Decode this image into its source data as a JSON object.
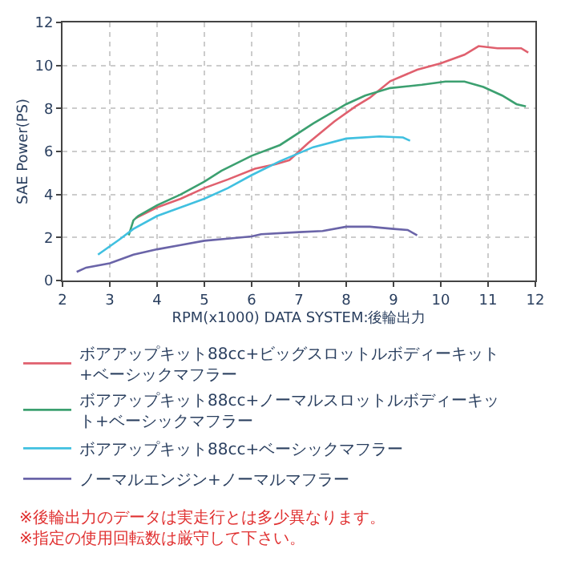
{
  "chart_data": {
    "type": "line",
    "xlabel": "RPM(x1000) DATA SYSTEM:後輪出力",
    "ylabel": "SAE Power(PS)",
    "xlim": [
      2,
      12
    ],
    "xticks": [
      2,
      3,
      4,
      5,
      6,
      7,
      8,
      9,
      10,
      11,
      12
    ],
    "ylim": [
      0,
      12
    ],
    "yticks": [
      0,
      2,
      4,
      6,
      8,
      10,
      12
    ],
    "grid": true,
    "legend": "bottom",
    "line_style": "solid",
    "marker": "none",
    "series": [
      {
        "name": "ボアアップキット88cc+ビッグスロットルボディーキット+ベーシックマフラー",
        "color": "#e0606e",
        "x": [
          3.55,
          4,
          4.5,
          5,
          5.5,
          6.07,
          6.5,
          6.8,
          7.2,
          7.75,
          8.2,
          8.5,
          8.93,
          9.5,
          10,
          10.5,
          10.8,
          11.2,
          11.5,
          11.7,
          11.85
        ],
        "values": [
          2.9,
          3.4,
          3.8,
          4.3,
          4.7,
          5.2,
          5.4,
          5.6,
          6.4,
          7.4,
          8.1,
          8.5,
          9.27,
          9.8,
          10.1,
          10.5,
          10.9,
          10.8,
          10.8,
          10.8,
          10.6
        ]
      },
      {
        "name": "ボアアップキット88cc+ノーマルスロットルボディーキット+ベーシックマフラー",
        "color": "#3ca070",
        "x": [
          3.4,
          3.5,
          3.6,
          4,
          4.5,
          5,
          5.36,
          6,
          6.6,
          7.3,
          8,
          8.4,
          8.93,
          9.6,
          10.1,
          10.5,
          10.9,
          11.3,
          11.6,
          11.8
        ],
        "values": [
          2.1,
          2.8,
          3.0,
          3.5,
          4.0,
          4.6,
          5.1,
          5.8,
          6.3,
          7.3,
          8.2,
          8.6,
          8.95,
          9.1,
          9.25,
          9.25,
          9.0,
          8.6,
          8.2,
          8.1
        ]
      },
      {
        "name": "ボアアップキット88cc+ベーシックマフラー",
        "color": "#40c0e0",
        "x": [
          2.75,
          3.2,
          3.5,
          4,
          4.5,
          5,
          5.5,
          6,
          6.6,
          7.3,
          8,
          8.7,
          9.2,
          9.35
        ],
        "values": [
          1.2,
          1.9,
          2.4,
          3.0,
          3.4,
          3.8,
          4.3,
          4.9,
          5.55,
          6.2,
          6.6,
          6.7,
          6.65,
          6.5
        ]
      },
      {
        "name": "ノーマルエンジン+ノーマルマフラー",
        "color": "#6a64a8",
        "x": [
          2.3,
          2.5,
          3,
          3.5,
          4,
          4.5,
          5,
          5.5,
          6,
          6.2,
          7,
          7.5,
          8,
          8.5,
          9,
          9.3,
          9.5
        ],
        "values": [
          0.4,
          0.6,
          0.8,
          1.2,
          1.45,
          1.65,
          1.85,
          1.95,
          2.05,
          2.15,
          2.25,
          2.3,
          2.5,
          2.5,
          2.4,
          2.35,
          2.1
        ]
      }
    ],
    "annotations": [
      "※後輪出力のデータは実走行とは多少異なります。",
      "※指定の使用回転数は厳守して下さい。"
    ]
  }
}
